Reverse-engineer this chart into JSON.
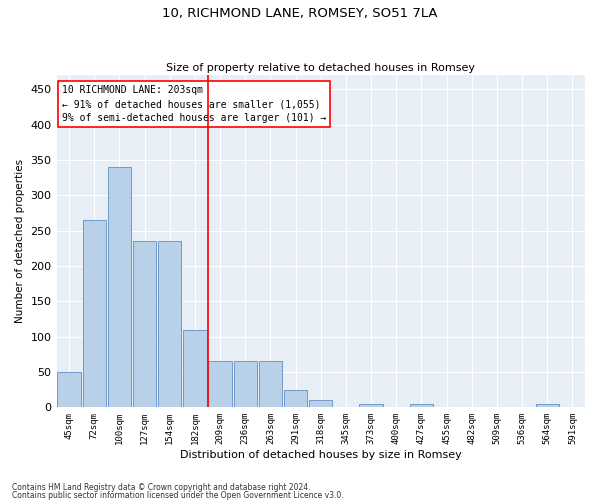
{
  "title": "10, RICHMOND LANE, ROMSEY, SO51 7LA",
  "subtitle": "Size of property relative to detached houses in Romsey",
  "xlabel": "Distribution of detached houses by size in Romsey",
  "ylabel": "Number of detached properties",
  "bar_color": "#b8d0e8",
  "bar_edge_color": "#6090c0",
  "background_color": "#e8eef6",
  "categories": [
    "45sqm",
    "72sqm",
    "100sqm",
    "127sqm",
    "154sqm",
    "182sqm",
    "209sqm",
    "236sqm",
    "263sqm",
    "291sqm",
    "318sqm",
    "345sqm",
    "373sqm",
    "400sqm",
    "427sqm",
    "455sqm",
    "482sqm",
    "509sqm",
    "536sqm",
    "564sqm",
    "591sqm"
  ],
  "values": [
    50,
    265,
    340,
    235,
    235,
    110,
    65,
    65,
    65,
    25,
    10,
    0,
    5,
    0,
    5,
    0,
    0,
    0,
    0,
    5,
    0
  ],
  "red_line_index": 6,
  "ylim": [
    0,
    470
  ],
  "yticks": [
    0,
    50,
    100,
    150,
    200,
    250,
    300,
    350,
    400,
    450
  ],
  "annotation_title": "10 RICHMOND LANE: 203sqm",
  "annotation_line1": "← 91% of detached houses are smaller (1,055)",
  "annotation_line2": "9% of semi-detached houses are larger (101) →",
  "footer1": "Contains HM Land Registry data © Crown copyright and database right 2024.",
  "footer2": "Contains public sector information licensed under the Open Government Licence v3.0."
}
